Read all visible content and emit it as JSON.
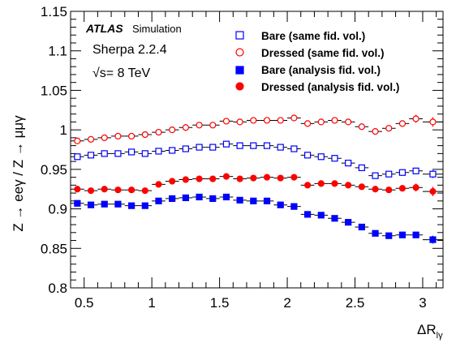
{
  "chart_data": {
    "type": "scatter",
    "xlabel_main": "ΔR",
    "xlabel_sub": "lγ",
    "ylabel": "Z → eeγ / Z → μμγ",
    "xlim": [
      0.4,
      3.15
    ],
    "ylim": [
      0.8,
      1.15
    ],
    "xticks": [
      0.5,
      1,
      1.5,
      2,
      2.5,
      3
    ],
    "xtick_labels": [
      "0.5",
      "1",
      "1.5",
      "2",
      "2.5",
      "3"
    ],
    "yticks": [
      0.8,
      0.85,
      0.9,
      0.95,
      1,
      1.05,
      1.1,
      1.15
    ],
    "ytick_labels": [
      "0.8",
      "0.85",
      "0.9",
      "0.95",
      "1",
      "1.05",
      "1.1",
      "1.15"
    ],
    "grid": false,
    "legend_position": "top-right",
    "annotations": {
      "atlas": "ATLAS",
      "atlas_sub": "Simulation",
      "generator": "Sherpa 2.2.4",
      "energy_sqrt": "√s",
      "energy_rest": "= 8 TeV"
    },
    "x": [
      0.45,
      0.55,
      0.65,
      0.75,
      0.85,
      0.95,
      1.05,
      1.15,
      1.25,
      1.35,
      1.45,
      1.55,
      1.65,
      1.75,
      1.85,
      1.95,
      2.05,
      2.15,
      2.25,
      2.35,
      2.45,
      2.55,
      2.65,
      2.75,
      2.85,
      2.95,
      3.075
    ],
    "x_halfwidth": [
      0.05,
      0.05,
      0.05,
      0.05,
      0.05,
      0.05,
      0.05,
      0.05,
      0.05,
      0.05,
      0.05,
      0.05,
      0.05,
      0.05,
      0.05,
      0.05,
      0.05,
      0.05,
      0.05,
      0.05,
      0.05,
      0.05,
      0.05,
      0.05,
      0.05,
      0.05,
      0.075
    ],
    "series": [
      {
        "name": "Bare (same fid. vol.)",
        "marker": "open-square",
        "color": "#0000ff",
        "values": [
          0.966,
          0.968,
          0.97,
          0.97,
          0.972,
          0.97,
          0.973,
          0.974,
          0.976,
          0.978,
          0.978,
          0.982,
          0.98,
          0.98,
          0.98,
          0.978,
          0.976,
          0.968,
          0.966,
          0.964,
          0.958,
          0.952,
          0.942,
          0.944,
          0.946,
          0.948,
          0.944
        ],
        "errors": [
          0.002,
          0.002,
          0.002,
          0.002,
          0.002,
          0.002,
          0.002,
          0.002,
          0.002,
          0.002,
          0.002,
          0.002,
          0.002,
          0.002,
          0.002,
          0.002,
          0.002,
          0.002,
          0.002,
          0.002,
          0.002,
          0.003,
          0.003,
          0.003,
          0.004,
          0.004,
          0.005
        ]
      },
      {
        "name": "Dressed (same fid. vol.)",
        "marker": "open-circle",
        "color": "#ff0000",
        "values": [
          0.986,
          0.988,
          0.99,
          0.992,
          0.992,
          0.994,
          0.997,
          1.0,
          1.003,
          1.006,
          1.006,
          1.011,
          1.01,
          1.012,
          1.012,
          1.012,
          1.015,
          1.008,
          1.01,
          1.012,
          1.01,
          1.004,
          0.998,
          1.002,
          1.008,
          1.014,
          1.01
        ],
        "errors": [
          0.002,
          0.002,
          0.002,
          0.002,
          0.002,
          0.002,
          0.002,
          0.002,
          0.002,
          0.002,
          0.002,
          0.002,
          0.002,
          0.002,
          0.002,
          0.002,
          0.002,
          0.002,
          0.002,
          0.002,
          0.002,
          0.003,
          0.003,
          0.004,
          0.004,
          0.005,
          0.006
        ]
      },
      {
        "name": "Bare (analysis fid. vol.)",
        "marker": "filled-square",
        "color": "#0000ff",
        "values": [
          0.907,
          0.905,
          0.906,
          0.906,
          0.904,
          0.904,
          0.91,
          0.913,
          0.914,
          0.915,
          0.913,
          0.915,
          0.911,
          0.91,
          0.91,
          0.905,
          0.903,
          0.893,
          0.892,
          0.888,
          0.883,
          0.877,
          0.869,
          0.866,
          0.867,
          0.867,
          0.861
        ],
        "errors": [
          0.002,
          0.002,
          0.002,
          0.002,
          0.002,
          0.002,
          0.002,
          0.002,
          0.002,
          0.002,
          0.002,
          0.002,
          0.002,
          0.002,
          0.002,
          0.002,
          0.002,
          0.002,
          0.002,
          0.002,
          0.002,
          0.003,
          0.003,
          0.003,
          0.004,
          0.004,
          0.005
        ]
      },
      {
        "name": "Dressed (analysis fid. vol.)",
        "marker": "filled-circle",
        "color": "#ff0000",
        "values": [
          0.925,
          0.923,
          0.925,
          0.924,
          0.924,
          0.923,
          0.931,
          0.935,
          0.937,
          0.938,
          0.938,
          0.941,
          0.938,
          0.939,
          0.94,
          0.939,
          0.94,
          0.93,
          0.932,
          0.932,
          0.93,
          0.928,
          0.925,
          0.924,
          0.926,
          0.927,
          0.922
        ],
        "errors": [
          0.002,
          0.002,
          0.002,
          0.002,
          0.002,
          0.002,
          0.002,
          0.002,
          0.002,
          0.002,
          0.002,
          0.002,
          0.002,
          0.002,
          0.002,
          0.002,
          0.002,
          0.002,
          0.002,
          0.002,
          0.002,
          0.003,
          0.003,
          0.003,
          0.004,
          0.005,
          0.006
        ]
      }
    ]
  }
}
